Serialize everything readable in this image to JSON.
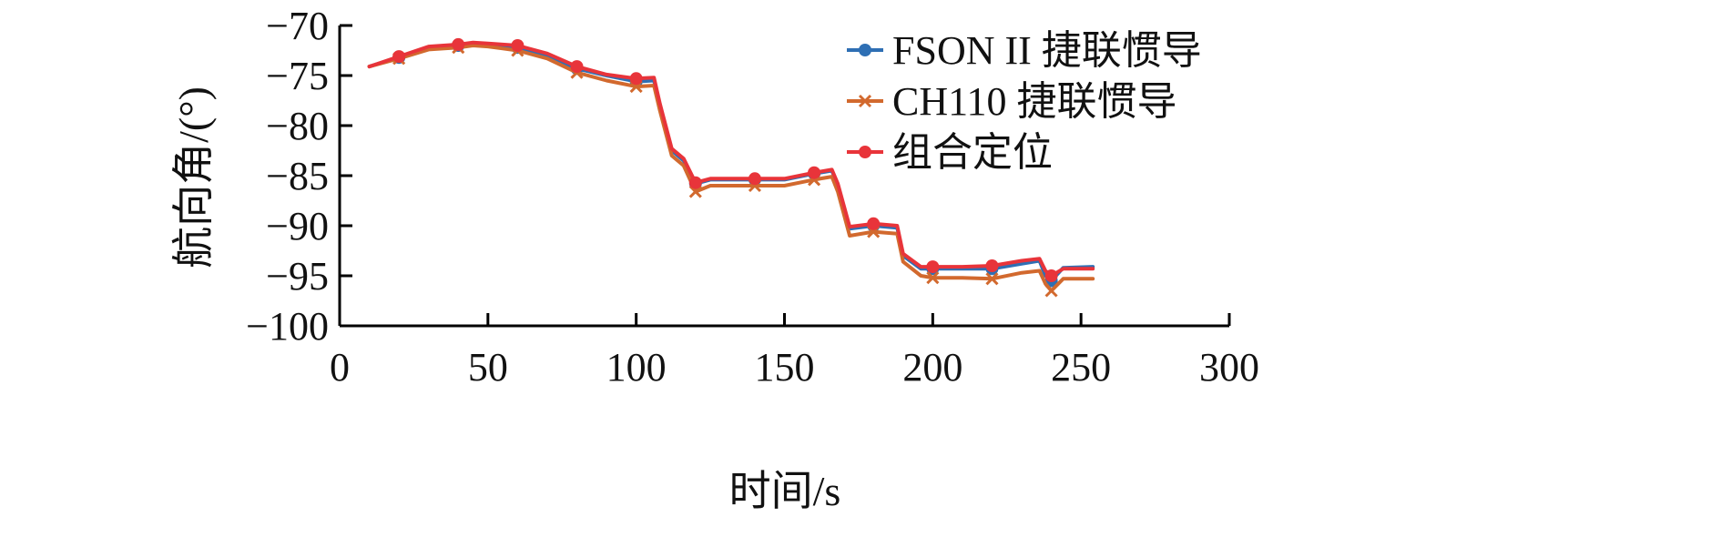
{
  "chart_data": {
    "type": "line",
    "xlabel": "时间/s",
    "ylabel": "航向角/(°)",
    "xlim": [
      0,
      300
    ],
    "ylim": [
      -100,
      -70
    ],
    "xticks": [
      0,
      50,
      100,
      150,
      200,
      250,
      300
    ],
    "yticks": [
      -70,
      -75,
      -80,
      -85,
      -90,
      -95,
      -100
    ],
    "ytick_labels": [
      "−70",
      "−75",
      "−80",
      "−85",
      "−90",
      "−95",
      "−100"
    ],
    "grid": false,
    "legend_position": "top-right",
    "series": [
      {
        "name": "FSON II 捷联惯导",
        "color": "#2E6FB4",
        "marker": "dot",
        "x": [
          10,
          20,
          30,
          40,
          45,
          50,
          55,
          60,
          70,
          80,
          90,
          100,
          106,
          108,
          112,
          116,
          120,
          125,
          130,
          140,
          150,
          160,
          166,
          168,
          172,
          180,
          188,
          190,
          196,
          200,
          210,
          220,
          230,
          236,
          238,
          240,
          244,
          254
        ],
        "y": [
          -74.1,
          -73.2,
          -72.2,
          -72.0,
          -71.8,
          -71.9,
          -72.1,
          -72.2,
          -73.0,
          -74.3,
          -75.0,
          -75.6,
          -75.5,
          -78.0,
          -82.5,
          -83.5,
          -85.8,
          -85.4,
          -85.4,
          -85.4,
          -85.4,
          -84.8,
          -84.5,
          -86.0,
          -90.3,
          -90.0,
          -90.2,
          -93.0,
          -94.3,
          -94.3,
          -94.3,
          -94.3,
          -93.8,
          -93.5,
          -95.0,
          -95.5,
          -94.2,
          -94.1
        ],
        "marker_x": [
          20,
          40,
          60,
          80,
          100,
          120,
          140,
          160,
          180,
          200,
          220,
          240
        ]
      },
      {
        "name": "CH110 捷联惯导",
        "color": "#D2692E",
        "marker": "cross",
        "x": [
          10,
          20,
          30,
          40,
          45,
          50,
          55,
          60,
          70,
          80,
          90,
          100,
          106,
          108,
          112,
          116,
          120,
          125,
          130,
          140,
          150,
          160,
          166,
          168,
          172,
          180,
          188,
          190,
          196,
          200,
          210,
          220,
          230,
          236,
          238,
          240,
          244,
          254
        ],
        "y": [
          -74.1,
          -73.3,
          -72.4,
          -72.2,
          -72.0,
          -72.1,
          -72.3,
          -72.5,
          -73.3,
          -74.7,
          -75.5,
          -76.1,
          -76.0,
          -78.5,
          -83.0,
          -84.0,
          -86.6,
          -86.0,
          -86.0,
          -86.0,
          -86.0,
          -85.4,
          -85.1,
          -86.6,
          -91.0,
          -90.6,
          -90.8,
          -93.6,
          -95.0,
          -95.2,
          -95.2,
          -95.3,
          -94.7,
          -94.5,
          -95.8,
          -96.5,
          -95.3,
          -95.3
        ],
        "marker_x": [
          20,
          40,
          60,
          80,
          100,
          120,
          140,
          160,
          180,
          200,
          220,
          240
        ]
      },
      {
        "name": "组合定位",
        "color": "#E8343A",
        "marker": "dot",
        "x": [
          10,
          20,
          30,
          40,
          45,
          50,
          55,
          60,
          70,
          80,
          90,
          100,
          106,
          108,
          112,
          116,
          120,
          125,
          130,
          140,
          150,
          160,
          166,
          168,
          172,
          180,
          188,
          190,
          196,
          200,
          210,
          220,
          230,
          236,
          238,
          240,
          244,
          254
        ],
        "y": [
          -74.1,
          -73.1,
          -72.1,
          -71.9,
          -71.7,
          -71.8,
          -71.9,
          -72.0,
          -72.8,
          -74.1,
          -74.9,
          -75.3,
          -75.2,
          -77.8,
          -82.3,
          -83.3,
          -85.7,
          -85.3,
          -85.3,
          -85.3,
          -85.3,
          -84.7,
          -84.4,
          -85.8,
          -90.1,
          -89.8,
          -90.0,
          -92.8,
          -94.1,
          -94.1,
          -94.1,
          -94.0,
          -93.5,
          -93.3,
          -94.5,
          -95.0,
          -94.3,
          -94.3
        ],
        "marker_x": [
          20,
          40,
          60,
          80,
          100,
          120,
          140,
          160,
          180,
          200,
          220,
          240
        ]
      }
    ]
  }
}
